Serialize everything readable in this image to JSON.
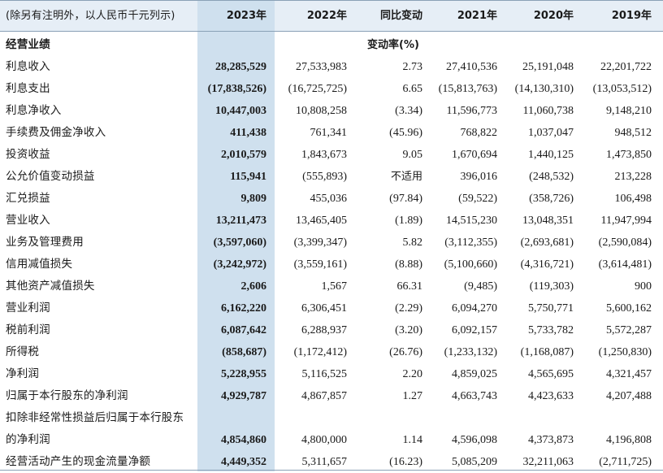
{
  "header": {
    "note": "(除另有注明外，以人民币千元列示)",
    "columns": [
      "2023年",
      "2022年",
      "同比变动",
      "2021年",
      "2020年",
      "2019年"
    ]
  },
  "section": {
    "title": "经营业绩",
    "change_label": "变动率(%)"
  },
  "rows": [
    {
      "label": "利息收入",
      "values": [
        "28,285,529",
        "27,533,983",
        "2.73",
        "27,410,536",
        "25,191,048",
        "22,201,722"
      ]
    },
    {
      "label": "利息支出",
      "values": [
        "(17,838,526)",
        "(16,725,725)",
        "6.65",
        "(15,813,763)",
        "(14,130,310)",
        "(13,053,512)"
      ]
    },
    {
      "label": "利息净收入",
      "values": [
        "10,447,003",
        "10,808,258",
        "(3.34)",
        "11,596,773",
        "11,060,738",
        "9,148,210"
      ]
    },
    {
      "label": "手续费及佣金净收入",
      "values": [
        "411,438",
        "761,341",
        "(45.96)",
        "768,822",
        "1,037,047",
        "948,512"
      ]
    },
    {
      "label": "投资收益",
      "values": [
        "2,010,579",
        "1,843,673",
        "9.05",
        "1,670,694",
        "1,440,125",
        "1,473,850"
      ]
    },
    {
      "label": "公允价值变动损益",
      "values": [
        "115,941",
        "(555,893)",
        "不适用",
        "396,016",
        "(248,532)",
        "213,228"
      ]
    },
    {
      "label": "汇兑损益",
      "values": [
        "9,809",
        "455,036",
        "(97.84)",
        "(59,522)",
        "(358,726)",
        "106,498"
      ]
    },
    {
      "label": "营业收入",
      "values": [
        "13,211,473",
        "13,465,405",
        "(1.89)",
        "14,515,230",
        "13,048,351",
        "11,947,994"
      ]
    },
    {
      "label": "业务及管理费用",
      "values": [
        "(3,597,060)",
        "(3,399,347)",
        "5.82",
        "(3,112,355)",
        "(2,693,681)",
        "(2,590,084)"
      ]
    },
    {
      "label": "信用减值损失",
      "values": [
        "(3,242,972)",
        "(3,559,161)",
        "(8.88)",
        "(5,100,660)",
        "(4,316,721)",
        "(3,614,481)"
      ]
    },
    {
      "label": "其他资产减值损失",
      "values": [
        "2,606",
        "1,567",
        "66.31",
        "(9,485)",
        "(119,303)",
        "900"
      ]
    },
    {
      "label": "营业利润",
      "values": [
        "6,162,220",
        "6,306,451",
        "(2.29)",
        "6,094,270",
        "5,750,771",
        "5,600,162"
      ]
    },
    {
      "label": "税前利润",
      "values": [
        "6,087,642",
        "6,288,937",
        "(3.20)",
        "6,092,157",
        "5,733,782",
        "5,572,287"
      ]
    },
    {
      "label": "所得税",
      "values": [
        "(858,687)",
        "(1,172,412)",
        "(26.76)",
        "(1,233,132)",
        "(1,168,087)",
        "(1,250,830)"
      ]
    },
    {
      "label": "净利润",
      "values": [
        "5,228,955",
        "5,116,525",
        "2.20",
        "4,859,025",
        "4,565,695",
        "4,321,457"
      ]
    },
    {
      "label": "归属于本行股东的净利润",
      "values": [
        "4,929,787",
        "4,867,857",
        "1.27",
        "4,663,743",
        "4,423,633",
        "4,207,488"
      ]
    },
    {
      "label": "扣除非经常性损益后归属于本行股东",
      "values": [
        "",
        "",
        "",
        "",
        "",
        ""
      ]
    },
    {
      "label": "的净利润",
      "values": [
        "4,854,860",
        "4,800,000",
        "1.14",
        "4,596,098",
        "4,373,873",
        "4,196,808"
      ]
    },
    {
      "label": "经营活动产生的现金流量净额",
      "values": [
        "4,449,352",
        "5,311,657",
        "(16.23)",
        "5,085,209",
        "32,211,063",
        "(2,711,725)"
      ]
    }
  ]
}
